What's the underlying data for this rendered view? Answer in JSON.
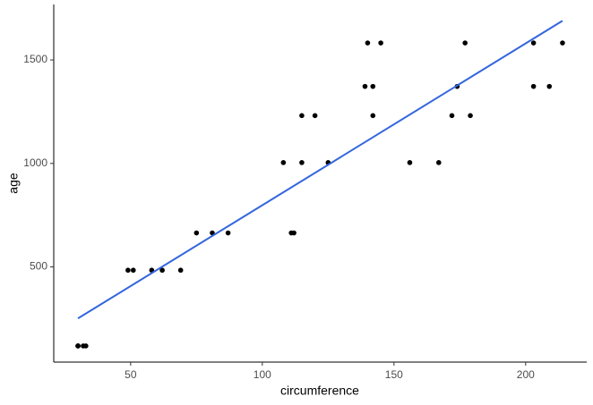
{
  "chart_data": {
    "type": "scatter",
    "xlabel": "circumference",
    "ylabel": "age",
    "xlim": [
      20.8,
      223.2
    ],
    "ylim": [
      40,
      1768
    ],
    "xticks": [
      50,
      100,
      150,
      200
    ],
    "yticks": [
      500,
      1000,
      1500
    ],
    "grid": false,
    "series": [
      {
        "type": "scatter",
        "color": "#000000",
        "x": [
          30,
          58,
          87,
          115,
          120,
          142,
          145,
          33,
          69,
          111,
          156,
          172,
          203,
          203,
          30,
          51,
          75,
          108,
          115,
          139,
          140,
          32,
          62,
          112,
          167,
          179,
          209,
          214,
          30,
          49,
          81,
          125,
          142,
          174,
          177
        ],
        "values": [
          118,
          484,
          664,
          1004,
          1231,
          1372,
          1582,
          118,
          484,
          664,
          1004,
          1231,
          1372,
          1582,
          118,
          484,
          664,
          1004,
          1231,
          1372,
          1582,
          118,
          484,
          664,
          1004,
          1231,
          1372,
          1582,
          118,
          484,
          664,
          1004,
          1231,
          1372,
          1582
        ]
      },
      {
        "type": "line",
        "color": "#3366dd",
        "x": [
          30,
          214
        ],
        "values": [
          251,
          1689
        ]
      }
    ]
  }
}
